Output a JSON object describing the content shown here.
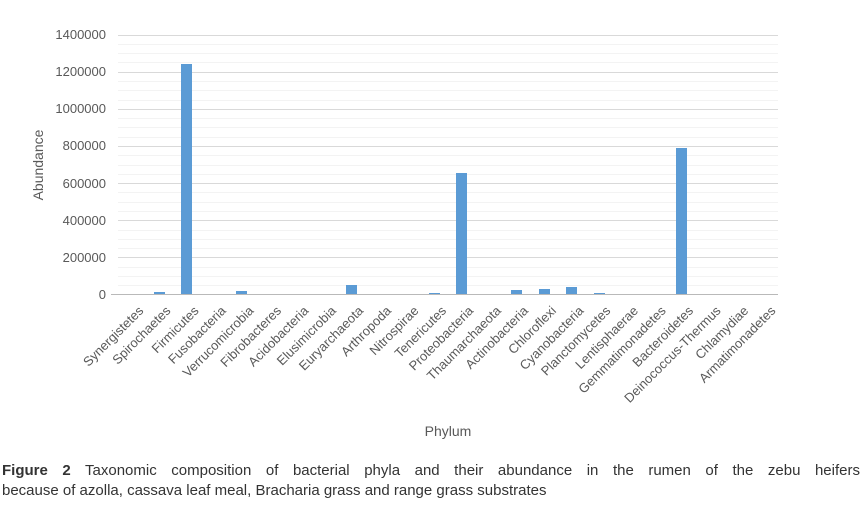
{
  "chart_data": {
    "type": "bar",
    "title": "",
    "xlabel": "Phylum",
    "ylabel": "Abundance",
    "categories": [
      "Synergistetes",
      "Spirochaetes",
      "Firmicutes",
      "Fusobacteria",
      "Verrucomicrobia",
      "Fibrobacteres",
      "Acidobacteria",
      "Elusimicrobia",
      "Euryarchaeota",
      "Arthropoda",
      "Nitrospirae",
      "Tenericutes",
      "Proteobacteria",
      "Thaumarchaeota",
      "Actinobacteria",
      "Chloroflexi",
      "Cyanobacteria",
      "Planctomycetes",
      "Lentisphaerae",
      "Gemmatimonadetes",
      "Bacteroidetes",
      "Deinococcus-Thermus",
      "Chlamydiae",
      "Armatimonadetes"
    ],
    "values": [
      0,
      12000,
      1240000,
      0,
      16000,
      0,
      0,
      0,
      48000,
      0,
      0,
      4000,
      650000,
      0,
      20000,
      28000,
      38000,
      6000,
      0,
      0,
      785000,
      0,
      0,
      0
    ],
    "ylim": [
      0,
      1400000
    ],
    "ytick_step": 200000,
    "ytick_labels": [
      "0",
      "200000",
      "400000",
      "600000",
      "800000",
      "1000000",
      "1200000",
      "1400000"
    ],
    "minor_gridline_step": 50000,
    "grid": "horizontal major + minor, no vertical grid",
    "legend": "none",
    "bar_color": "#5B9BD5"
  },
  "colors": {
    "bar": "#5B9BD5",
    "axis_text": "#595959",
    "gridline_major": "#D9D9D9",
    "gridline_minor": "#F3F3F3",
    "axis_line": "#B9B9B9",
    "caption_text": "#333333"
  },
  "caption": {
    "label": "Figure 2",
    "line1": "Taxonomic composition of bacterial phyla and their abundance in the rumen of the zebu heifers",
    "line2": "because of azolla, cassava leaf meal, Bracharia grass and range grass substrates"
  }
}
